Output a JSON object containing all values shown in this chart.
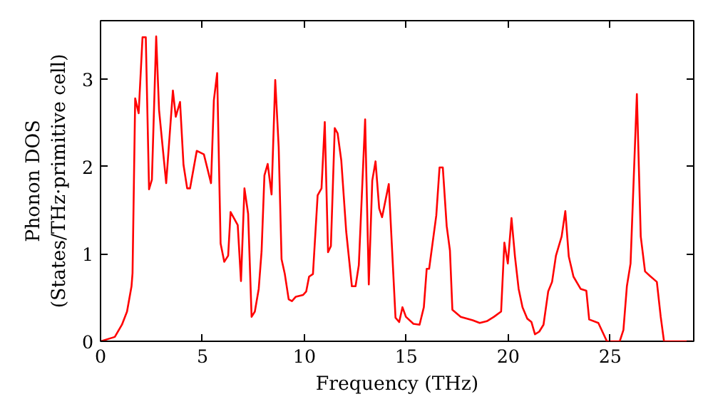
{
  "chart_data": {
    "type": "line",
    "xlabel": "Frequency (THz)",
    "ylabel": "Phonon DOS\n(States/THz·primitive cell)",
    "xlim": [
      0,
      29.1
    ],
    "ylim": [
      0,
      3.67
    ],
    "xticks": [
      0,
      5,
      10,
      15,
      20,
      25
    ],
    "yticks": [
      0,
      1,
      2,
      3
    ],
    "grid": false,
    "series": [
      {
        "color": "#ff0000",
        "x": [
          0,
          0.7,
          1.05,
          1.3,
          1.52,
          1.57,
          1.7,
          1.87,
          2.06,
          2.22,
          2.38,
          2.52,
          2.73,
          2.87,
          3.22,
          3.55,
          3.69,
          3.9,
          4.07,
          4.25,
          4.39,
          4.72,
          5.07,
          5.42,
          5.56,
          5.72,
          5.89,
          6.07,
          6.26,
          6.38,
          6.73,
          6.89,
          7.06,
          7.24,
          7.41,
          7.57,
          7.76,
          7.9,
          8.04,
          8.2,
          8.39,
          8.57,
          8.74,
          8.88,
          9.04,
          9.23,
          9.39,
          9.58,
          9.93,
          10.09,
          10.23,
          10.42,
          10.65,
          10.84,
          11.0,
          11.16,
          11.3,
          11.49,
          11.63,
          11.81,
          12.05,
          12.33,
          12.51,
          12.67,
          12.98,
          13.16,
          13.33,
          13.49,
          13.67,
          13.81,
          14.14,
          14.47,
          14.65,
          14.81,
          14.98,
          15.35,
          15.65,
          15.86,
          16.0,
          16.12,
          16.47,
          16.63,
          16.79,
          16.98,
          17.14,
          17.26,
          17.67,
          18.26,
          18.6,
          18.95,
          19.3,
          19.65,
          19.81,
          19.98,
          20.16,
          20.33,
          20.51,
          20.7,
          20.93,
          21.14,
          21.31,
          21.52,
          21.73,
          21.96,
          22.15,
          22.34,
          22.62,
          22.8,
          22.97,
          23.2,
          23.55,
          23.83,
          23.97,
          24.42,
          24.84,
          25.47,
          25.65,
          25.82,
          26.0,
          26.31,
          26.5,
          26.71,
          26.94,
          27.29,
          27.48,
          27.64,
          29.04
        ],
        "values": [
          0,
          0.05,
          0.19,
          0.34,
          0.63,
          0.78,
          2.78,
          2.61,
          3.48,
          3.48,
          1.74,
          1.85,
          3.49,
          2.65,
          1.81,
          2.87,
          2.57,
          2.74,
          2.02,
          1.75,
          1.75,
          2.18,
          2.14,
          1.81,
          2.76,
          3.07,
          1.12,
          0.91,
          0.98,
          1.48,
          1.33,
          0.69,
          1.75,
          1.46,
          0.28,
          0.34,
          0.6,
          1.03,
          1.9,
          2.03,
          1.68,
          2.99,
          2.22,
          0.94,
          0.77,
          0.48,
          0.46,
          0.51,
          0.53,
          0.57,
          0.74,
          0.77,
          1.67,
          1.75,
          2.51,
          1.02,
          1.09,
          2.44,
          2.38,
          2.07,
          1.26,
          0.63,
          0.63,
          0.87,
          2.54,
          0.65,
          1.84,
          2.06,
          1.52,
          1.42,
          1.8,
          0.27,
          0.22,
          0.39,
          0.28,
          0.2,
          0.19,
          0.39,
          0.83,
          0.83,
          1.44,
          1.99,
          1.99,
          1.32,
          1.04,
          0.36,
          0.28,
          0.24,
          0.21,
          0.23,
          0.28,
          0.34,
          1.13,
          0.89,
          1.41,
          0.97,
          0.6,
          0.39,
          0.26,
          0.22,
          0.08,
          0.11,
          0.19,
          0.57,
          0.68,
          0.98,
          1.2,
          1.49,
          0.97,
          0.74,
          0.6,
          0.58,
          0.25,
          0.21,
          0,
          0,
          0.13,
          0.63,
          0.89,
          2.83,
          1.2,
          0.8,
          0.75,
          0.68,
          0.28,
          0,
          0
        ]
      }
    ]
  }
}
